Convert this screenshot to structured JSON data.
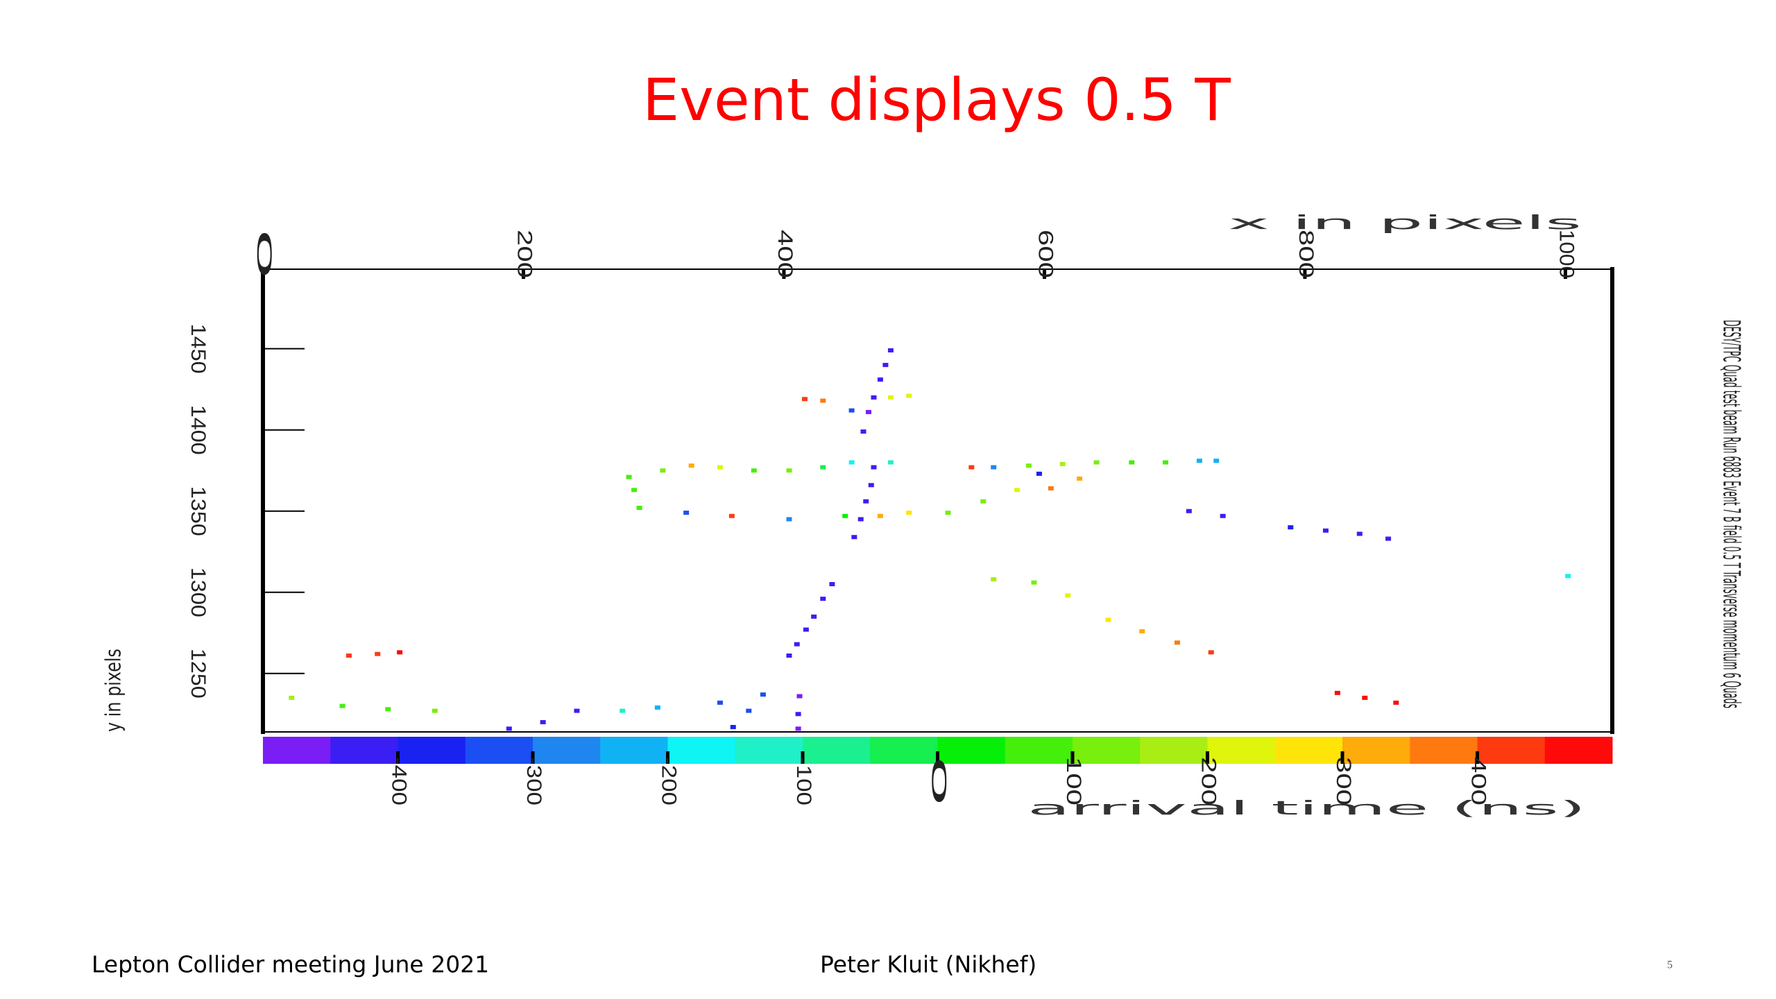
{
  "title": "Event displays 0.5 T",
  "footer": {
    "left": "Lepton Collider meeting June 2021",
    "center": "Peter Kluit (Nikhef)",
    "page": "5"
  },
  "chart_data": {
    "type": "scatter",
    "x_label": "x in pixels",
    "y_label": "y in pixels",
    "colorbar_label": "arrival time (ns)",
    "side_text": "DESY/TPC Quad test beam   Run 6883 Event 7   B field 0.5 T Transverse momentum 6 Quads",
    "xlim": [
      0,
      1036
    ],
    "xticks": [
      0,
      200,
      400,
      600,
      800,
      1000
    ],
    "ylim": [
      1214,
      1499
    ],
    "yticks": [
      1250,
      1300,
      1350,
      1400,
      1450
    ],
    "colorbar": {
      "lim": [
        -500,
        500
      ],
      "ticks": [
        -400,
        -300,
        -200,
        -100,
        0,
        100,
        200,
        300,
        400
      ],
      "colors": [
        "#7b1df5",
        "#3b1ef4",
        "#1a22f2",
        "#1b4ff3",
        "#1f86f0",
        "#10b2f4",
        "#0ff4f4",
        "#1ff0c8",
        "#1bf090",
        "#17ee4f",
        "#06ef08",
        "#45ef0c",
        "#78ef0c",
        "#a8ee14",
        "#dff50c",
        "#fee409",
        "#feab0c",
        "#fe7a10",
        "#fe3a10",
        "#fe0a0a"
      ]
    },
    "x": [
      482,
      478,
      474,
      469,
      465,
      461,
      469,
      467,
      463,
      459,
      454,
      452,
      416,
      430,
      482,
      496,
      437,
      430,
      423,
      417,
      410,
      404,
      412,
      411,
      411,
      384,
      373,
      361,
      22,
      61,
      96,
      132,
      276,
      303,
      351,
      189,
      215,
      241,
      66,
      88,
      105,
      281,
      307,
      329,
      351,
      377,
      404,
      430,
      452,
      482,
      285,
      289,
      325,
      360,
      404,
      447,
      474,
      496,
      526,
      553,
      579,
      605,
      627,
      596,
      561,
      544,
      588,
      614,
      640,
      667,
      693,
      719,
      732,
      711,
      737,
      789,
      816,
      842,
      864,
      561,
      592,
      618,
      649,
      675,
      702,
      728,
      825,
      846,
      870,
      1002
    ],
    "y": [
      1449,
      1440,
      1431,
      1420,
      1411,
      1399,
      1377,
      1366,
      1356,
      1345,
      1334,
      1412,
      1419,
      1418,
      1420,
      1421,
      1305,
      1296,
      1285,
      1277,
      1268,
      1261,
      1236,
      1225,
      1216,
      1237,
      1227,
      1217,
      1235,
      1230,
      1228,
      1227,
      1227,
      1229,
      1232,
      1216,
      1220,
      1227,
      1261,
      1262,
      1263,
      1371,
      1375,
      1378,
      1377,
      1375,
      1375,
      1377,
      1380,
      1380,
      1363,
      1352,
      1349,
      1347,
      1345,
      1347,
      1347,
      1349,
      1349,
      1356,
      1363,
      1364,
      1370,
      1373,
      1377,
      1377,
      1378,
      1379,
      1380,
      1380,
      1380,
      1381,
      1381,
      1350,
      1347,
      1340,
      1338,
      1336,
      1333,
      1308,
      1306,
      1298,
      1283,
      1276,
      1269,
      1263,
      1238,
      1235,
      1232,
      1310
    ],
    "t": [
      -440,
      -450,
      -430,
      -440,
      -460,
      -420,
      -440,
      -450,
      -430,
      -440,
      -450,
      -330,
      420,
      380,
      230,
      210,
      -430,
      -420,
      -430,
      -440,
      -430,
      -420,
      -460,
      -450,
      -470,
      -350,
      -340,
      -360,
      150,
      80,
      60,
      120,
      -150,
      -230,
      -320,
      -450,
      -440,
      -420,
      430,
      420,
      450,
      80,
      140,
      300,
      200,
      50,
      100,
      -30,
      -200,
      -150,
      60,
      70,
      -350,
      420,
      -300,
      30,
      330,
      250,
      120,
      110,
      200,
      380,
      330,
      -380,
      -300,
      440,
      110,
      150,
      100,
      80,
      70,
      -230,
      -220,
      -430,
      -430,
      -400,
      -420,
      -410,
      -440,
      180,
      130,
      220,
      250,
      300,
      350,
      400,
      450,
      470,
      460,
      -180
    ]
  }
}
